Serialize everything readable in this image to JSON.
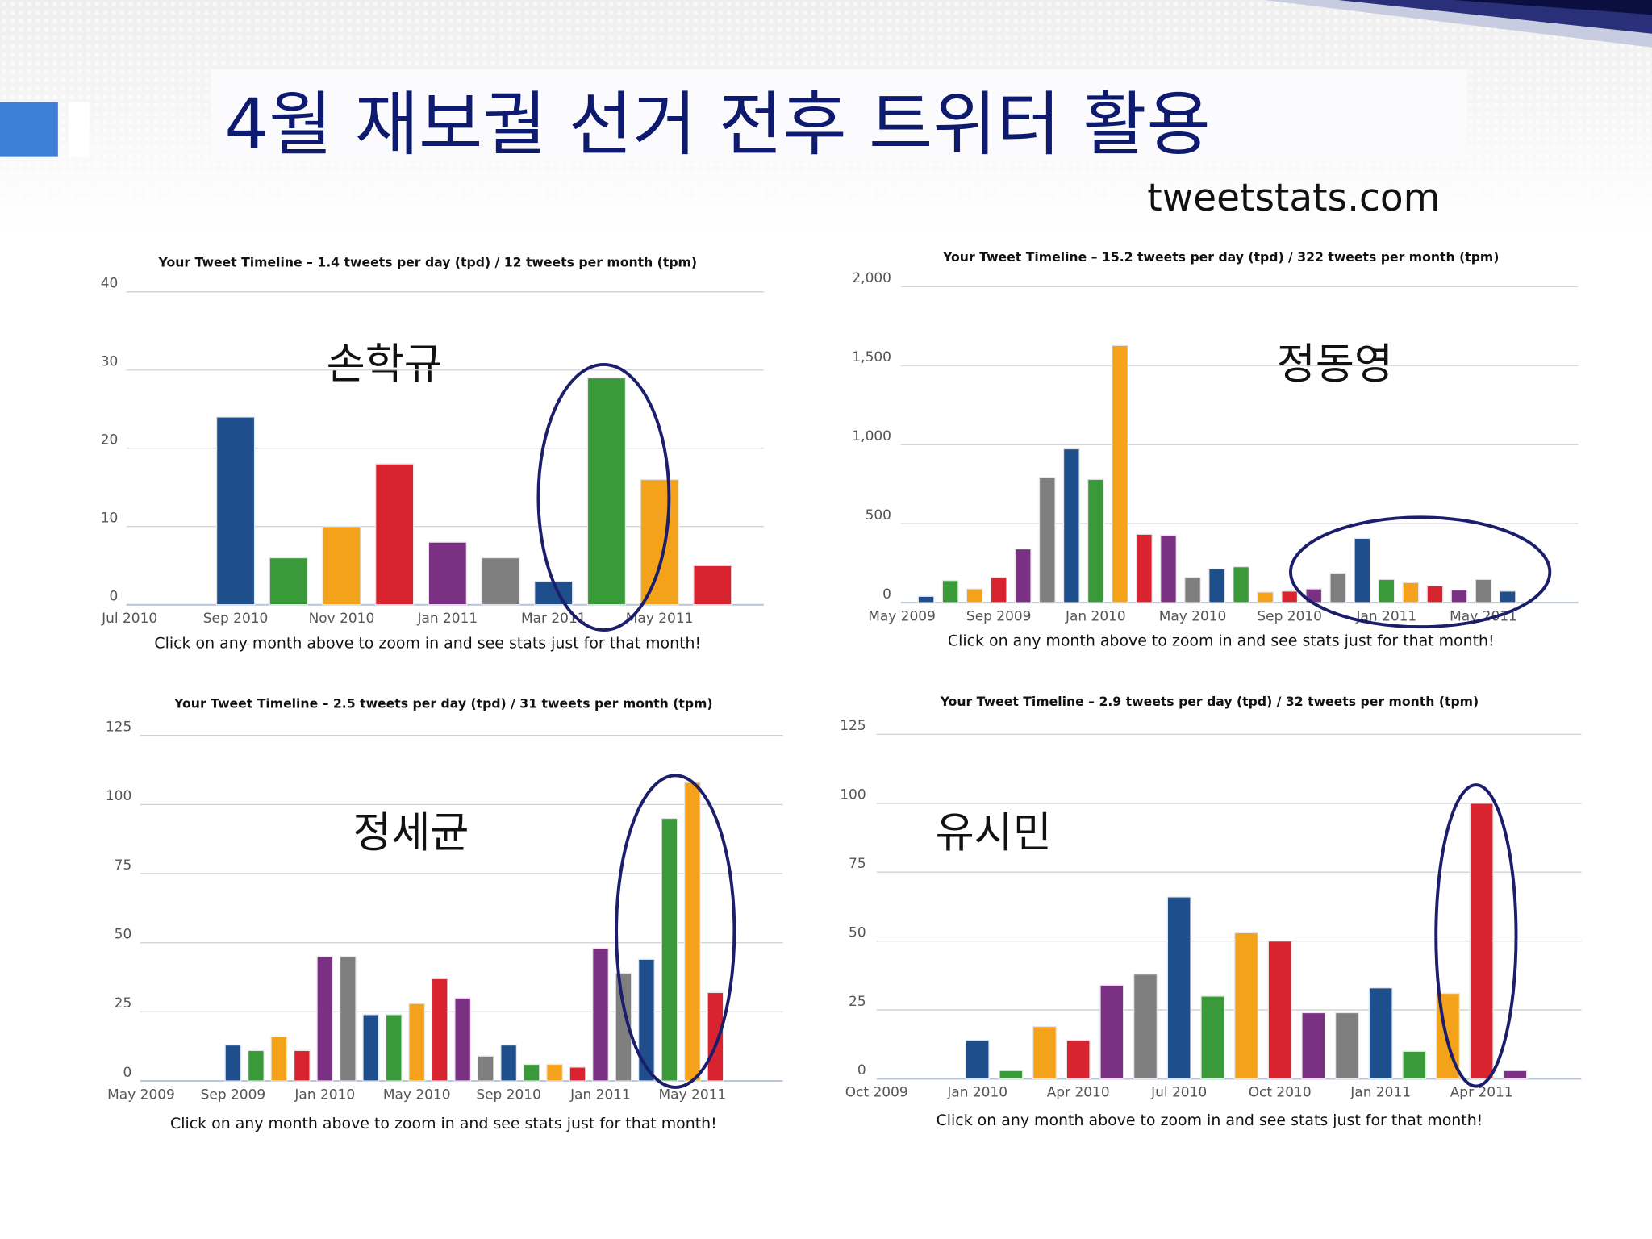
{
  "header": {
    "title": "4월 재보궐 선거 전후 트위터 활용",
    "source": "tweetstats.com"
  },
  "chart_data": [
    {
      "type": "bar",
      "title": "Your Tweet Timeline – 1.4 tweets per day (tpd) / 12 tweets per month (tpm)",
      "annotation": "손학규",
      "note": "Click on any month above to zoom in and see stats just for that month!",
      "categories": [
        "Jul 2010",
        null,
        "Sep 2010",
        null,
        "Nov 2010",
        null,
        "Jan 2011",
        null,
        "Mar 2011",
        null,
        "May 2011",
        null
      ],
      "values": [
        0,
        0,
        24,
        6,
        10,
        18,
        8,
        6,
        3,
        29,
        16,
        5
      ],
      "colors": [
        "#7b3183",
        "#7f7f7f",
        "#1f4e8c",
        "#3a9a3a",
        "#f5a21b",
        "#d9232e",
        "#7b3183",
        "#7f7f7f",
        "#1f4e8c",
        "#3a9a3a",
        "#f5a21b",
        "#d9232e"
      ],
      "ylim": [
        0,
        40
      ],
      "yticks": [
        0,
        10,
        20,
        30,
        40
      ],
      "grid": true
    },
    {
      "type": "bar",
      "title": "Your Tweet Timeline – 15.2 tweets per day (tpd) / 322 tweets per month (tpm)",
      "annotation": "정동영",
      "note": "Click on any month above to zoom in and see stats just for that month!",
      "categories": [
        "May 2009",
        null,
        null,
        null,
        "Sep 2009",
        null,
        null,
        null,
        "Jan 2010",
        null,
        null,
        null,
        "May 2010",
        null,
        null,
        null,
        "Sep 2010",
        null,
        null,
        null,
        "Jan 2011",
        null,
        null,
        null,
        "May 2011",
        null
      ],
      "values": [
        0,
        40,
        140,
        87,
        160,
        340,
        793,
        973,
        780,
        1627,
        433,
        427,
        160,
        213,
        227,
        67,
        73,
        87,
        187,
        407,
        147,
        127,
        107,
        80,
        147,
        73
      ],
      "colors": [
        "#7f7f7f",
        "#1f4e8c",
        "#3a9a3a",
        "#f5a21b",
        "#d9232e",
        "#7b3183",
        "#7f7f7f",
        "#1f4e8c",
        "#3a9a3a",
        "#f5a21b",
        "#d9232e",
        "#7b3183",
        "#7f7f7f",
        "#1f4e8c",
        "#3a9a3a",
        "#f5a21b",
        "#d9232e",
        "#7b3183",
        "#7f7f7f",
        "#1f4e8c",
        "#3a9a3a",
        "#f5a21b",
        "#d9232e",
        "#7b3183",
        "#7f7f7f",
        "#1f4e8c"
      ],
      "ylim": [
        0,
        2000
      ],
      "yticks": [
        0,
        500,
        {
          "value": 1000,
          "label": "1,000"
        },
        {
          "value": 1500,
          "label": "1,500"
        },
        {
          "value": 2000,
          "label": "2,000"
        }
      ],
      "grid": true
    },
    {
      "type": "bar",
      "title": "Your Tweet Timeline – 2.5 tweets per day (tpd) / 31 tweets per month (tpm)",
      "annotation": "정세균",
      "note": "Click on any month above to zoom in and see stats just for that month!",
      "categories": [
        "May 2009",
        null,
        null,
        null,
        "Sep 2009",
        null,
        null,
        null,
        "Jan 2010",
        null,
        null,
        null,
        "May 2010",
        null,
        null,
        null,
        "Sep 2010",
        null,
        null,
        null,
        "Jan 2011",
        null,
        null,
        null,
        "May 2011",
        null
      ],
      "values": [
        0,
        0,
        0,
        0,
        13,
        11,
        16,
        11,
        45,
        45,
        24,
        24,
        28,
        37,
        30,
        9,
        13,
        6,
        6,
        5,
        48,
        39,
        44,
        95,
        108,
        32
      ],
      "colors": [
        "#f5a21b",
        "#d9232e",
        "#7b3183",
        "#7f7f7f",
        "#1f4e8c",
        "#3a9a3a",
        "#f5a21b",
        "#d9232e",
        "#7b3183",
        "#7f7f7f",
        "#1f4e8c",
        "#3a9a3a",
        "#f5a21b",
        "#d9232e",
        "#7b3183",
        "#7f7f7f",
        "#1f4e8c",
        "#3a9a3a",
        "#f5a21b",
        "#d9232e",
        "#7b3183",
        "#7f7f7f",
        "#1f4e8c",
        "#3a9a3a",
        "#f5a21b",
        "#d9232e"
      ],
      "ylim": [
        0,
        125
      ],
      "yticks": [
        0,
        25,
        50,
        75,
        100,
        125
      ],
      "grid": true
    },
    {
      "type": "bar",
      "title": "Your Tweet Timeline – 2.9 tweets per day (tpd) / 32 tweets per month (tpm)",
      "annotation": "유시민",
      "note": "Click on any month above to zoom in and see stats just for that month!",
      "categories": [
        "Oct 2009",
        null,
        null,
        "Jan 2010",
        null,
        null,
        "Apr 2010",
        null,
        null,
        "Jul 2010",
        null,
        null,
        "Oct 2010",
        null,
        null,
        "Jan 2011",
        null,
        null,
        "Apr 2011",
        null
      ],
      "values": [
        0,
        0,
        0,
        14,
        3,
        19,
        14,
        34,
        38,
        66,
        30,
        53,
        50,
        24,
        24,
        33,
        10,
        31,
        100,
        3
      ],
      "colors": [
        "#d9232e",
        "#7b3183",
        "#7f7f7f",
        "#1f4e8c",
        "#3a9a3a",
        "#f5a21b",
        "#d9232e",
        "#7b3183",
        "#7f7f7f",
        "#1f4e8c",
        "#3a9a3a",
        "#f5a21b",
        "#d9232e",
        "#7b3183",
        "#7f7f7f",
        "#1f4e8c",
        "#3a9a3a",
        "#f5a21b",
        "#d9232e",
        "#7b3183"
      ],
      "ylim": [
        0,
        125
      ],
      "yticks": [
        0,
        25,
        50,
        75,
        100,
        125
      ],
      "grid": true
    }
  ]
}
